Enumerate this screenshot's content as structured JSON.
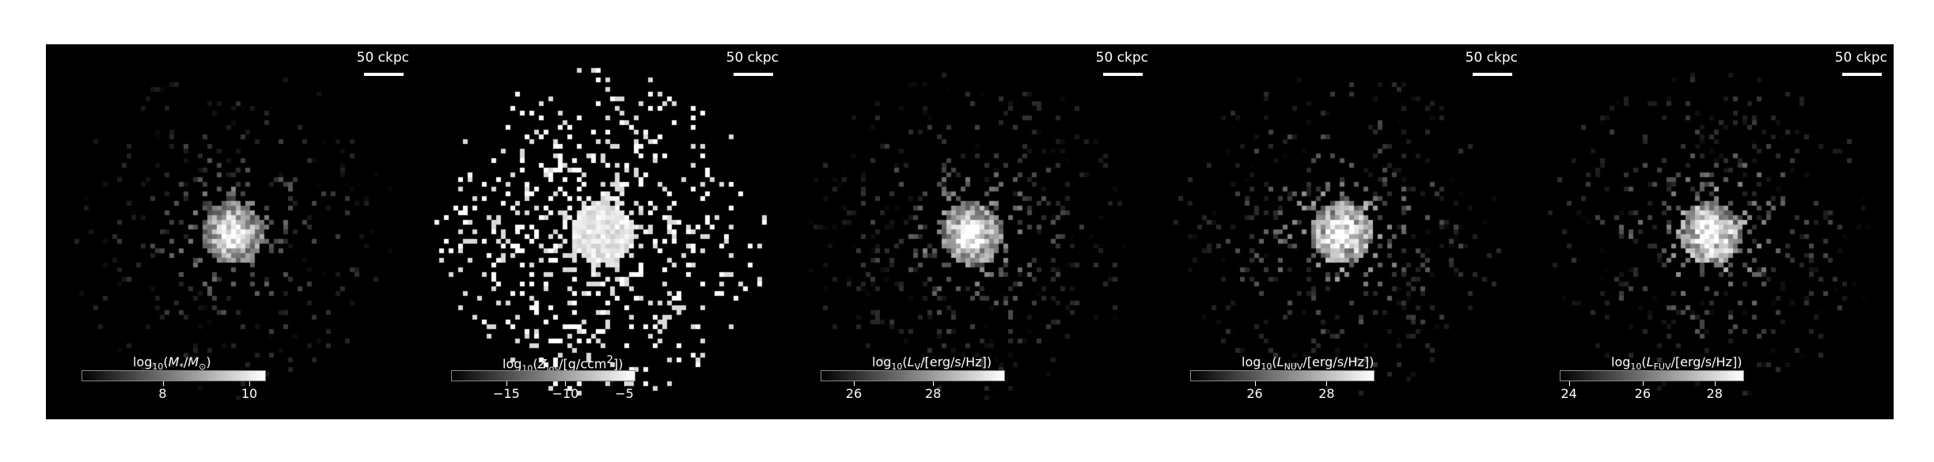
{
  "scale_bar_label": "50 ckpc",
  "panels": [
    {
      "id": "stellar-mass",
      "colorbar_label_html": "log<sub>10</sub>(<i>M</i><sub>*</sub>/<i>M</i><sub>⊙</sub>)",
      "ticks": [
        {
          "label": "8",
          "frac": 0.44
        },
        {
          "label": "10",
          "frac": 0.91
        }
      ],
      "style": {
        "pixel_prob": 0.25,
        "core": 0.95,
        "noise_gain": 0.55
      }
    },
    {
      "id": "metallicity",
      "colorbar_label_html": "log<sub>10</sub>(<i>Z</i><sub>los</sub>/[g/ccm<sup>2</sup>])",
      "ticks": [
        {
          "label": "−15",
          "frac": 0.3
        },
        {
          "label": "−10",
          "frac": 0.62
        },
        {
          "label": "−5",
          "frac": 0.94
        }
      ],
      "style": {
        "pixel_prob": 0.42,
        "core": 1.0,
        "noise_gain": 1.0
      }
    },
    {
      "id": "v-band-luminosity",
      "colorbar_label_html": "log<sub>10</sub>(<i>L</i><sub>V</sub>/[erg/s/Hz])",
      "ticks": [
        {
          "label": "26",
          "frac": 0.18
        },
        {
          "label": "28",
          "frac": 0.61
        }
      ],
      "style": {
        "pixel_prob": 0.32,
        "core": 0.95,
        "noise_gain": 0.6
      }
    },
    {
      "id": "nuv-luminosity",
      "colorbar_label_html": "log<sub>10</sub>(<i>L</i><sub>NUV</sub>/[erg/s/Hz])",
      "ticks": [
        {
          "label": "26",
          "frac": 0.35
        },
        {
          "label": "28",
          "frac": 0.74
        }
      ],
      "style": {
        "pixel_prob": 0.35,
        "core": 0.95,
        "noise_gain": 0.7
      }
    },
    {
      "id": "fuv-luminosity",
      "colorbar_label_html": "log<sub>10</sub>(<i>L</i><sub>FUV</sub>/[erg/s/Hz])",
      "ticks": [
        {
          "label": "24",
          "frac": 0.05
        },
        {
          "label": "26",
          "frac": 0.45
        },
        {
          "label": "28",
          "frac": 0.84
        }
      ],
      "style": {
        "pixel_prob": 0.35,
        "core": 0.95,
        "noise_gain": 0.72
      }
    }
  ]
}
